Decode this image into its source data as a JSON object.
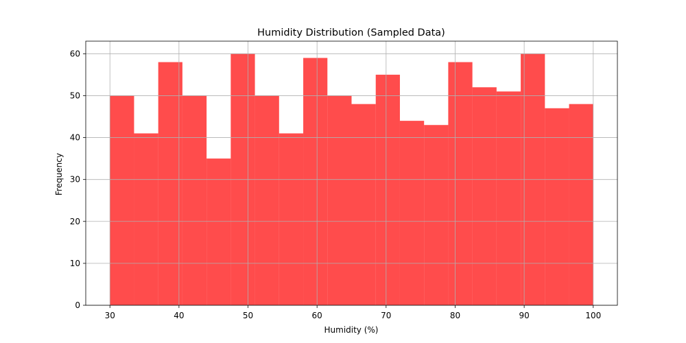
{
  "chart_data": {
    "type": "bar",
    "title": "Humidity Distribution (Sampled Data)",
    "xlabel": "Humidity (%)",
    "ylabel": "Frequency",
    "bin_edges": [
      30,
      33.5,
      37,
      40.5,
      44,
      47.5,
      51,
      54.5,
      58,
      61.5,
      65,
      68.5,
      72,
      75.5,
      79,
      82.5,
      86,
      89.5,
      93,
      96.5,
      100
    ],
    "values": [
      50,
      41,
      58,
      50,
      35,
      60,
      50,
      41,
      59,
      50,
      48,
      55,
      44,
      43,
      58,
      52,
      51,
      60,
      47,
      48
    ],
    "xlim": [
      26.5,
      103.5
    ],
    "ylim": [
      0,
      63
    ],
    "xticks": [
      30,
      40,
      50,
      60,
      70,
      80,
      90,
      100
    ],
    "yticks": [
      0,
      10,
      20,
      30,
      40,
      50,
      60
    ],
    "grid": true,
    "bar_color": "#ff0000",
    "bar_alpha": 0.7,
    "grid_color": "#b0b0b0"
  }
}
